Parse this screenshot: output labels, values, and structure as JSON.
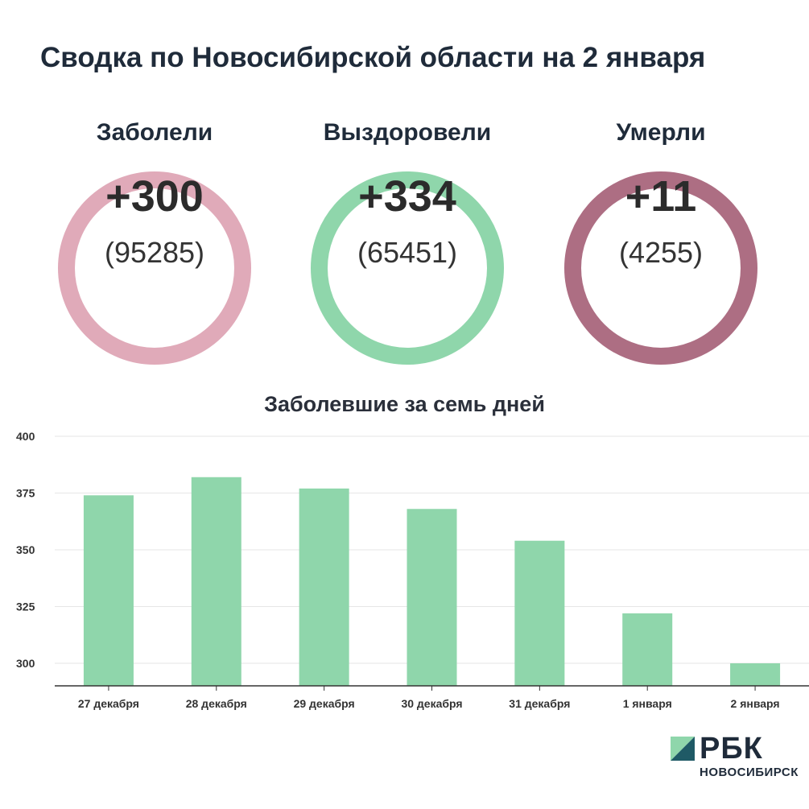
{
  "title": "Сводка по Новосибирской области на 2 января",
  "stats": [
    {
      "label": "Заболели",
      "delta": "+300",
      "total": "(95285)",
      "color": "#e0aab9"
    },
    {
      "label": "Выздоровели",
      "delta": "+334",
      "total": "(65451)",
      "color": "#8fd6ab"
    },
    {
      "label": "Умерли",
      "delta": "+11",
      "total": "(4255)",
      "color": "#ad6e83"
    }
  ],
  "chart_title": "Заболевшие за семь дней",
  "chart_data": {
    "type": "bar",
    "title": "Заболевшие за семь дней",
    "categories": [
      "27 декабря",
      "28 декабря",
      "29 декабря",
      "30 декабря",
      "31 декабря",
      "1 января",
      "2 января"
    ],
    "values": [
      374,
      382,
      377,
      368,
      354,
      322,
      300
    ],
    "ylim": [
      290,
      400
    ],
    "yticks": [
      300,
      325,
      350,
      375,
      400
    ],
    "grid": true,
    "bar_color": "#8fd6ab"
  },
  "logo": {
    "name": "РБК",
    "sub": "НОВОСИБИРСК"
  }
}
